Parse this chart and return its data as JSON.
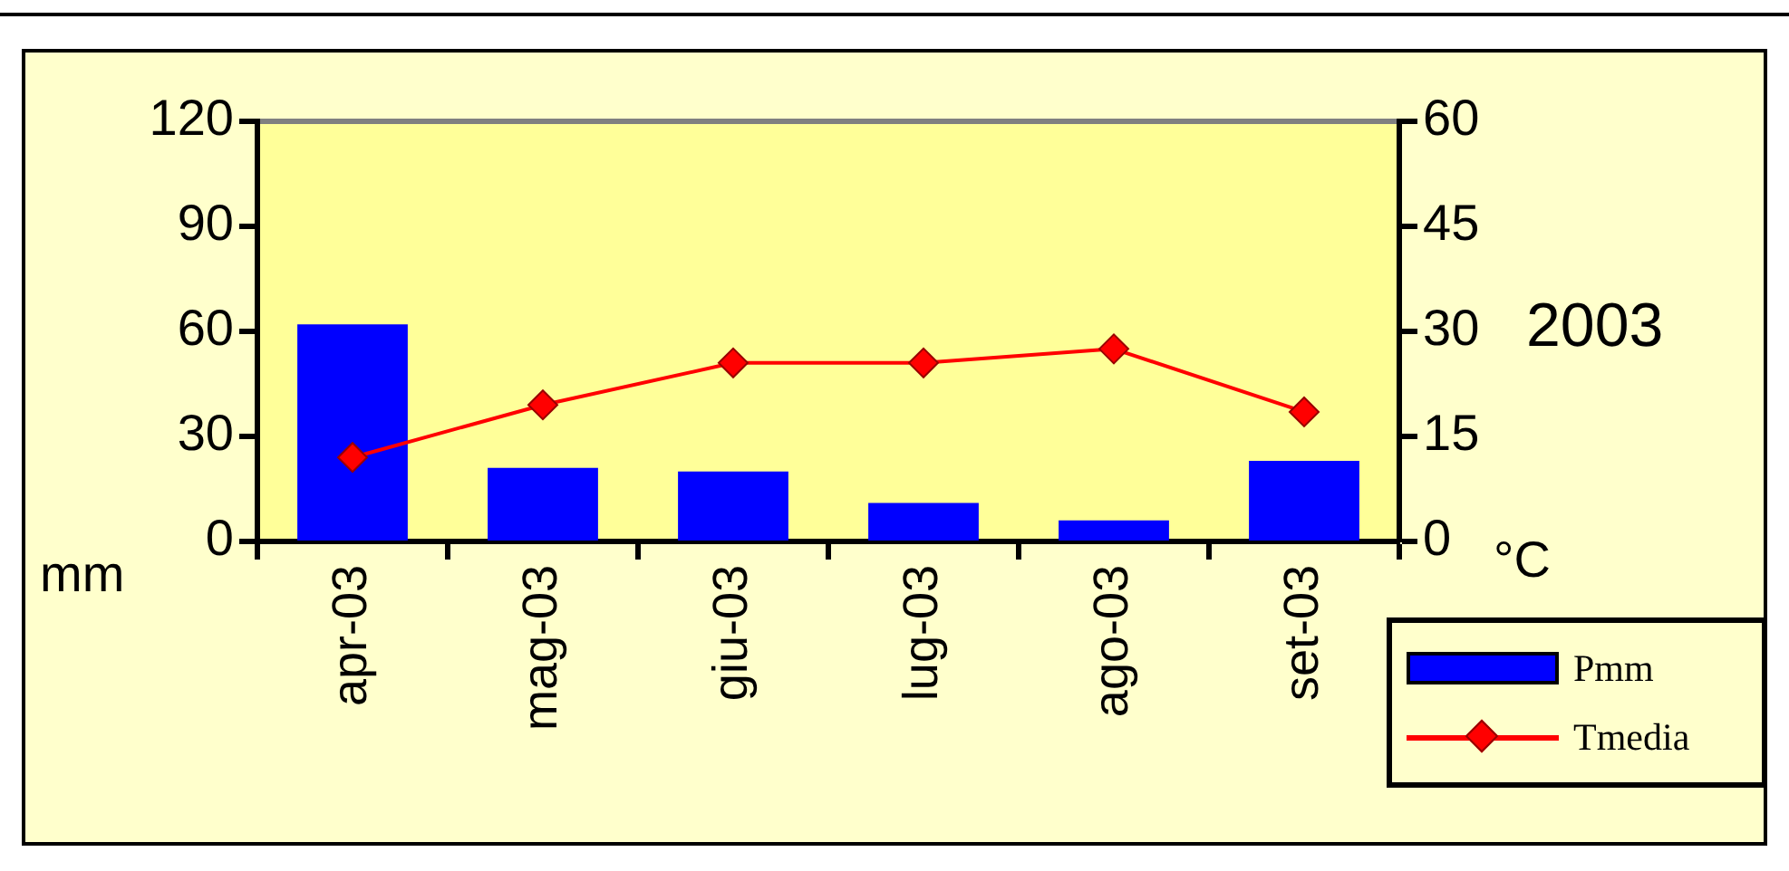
{
  "chart_data": {
    "type": "bar",
    "categories": [
      "apr-03",
      "mag-03",
      "giu-03",
      "lug-03",
      "ago-03",
      "set-03"
    ],
    "series": [
      {
        "name": "Pmm",
        "color": "#0000ff",
        "values": [
          62,
          21,
          20,
          11,
          6,
          23
        ]
      },
      {
        "name": "Tmedia",
        "type": "line",
        "axis": "y2",
        "color": "#ff0000",
        "values": [
          12,
          19.5,
          25.5,
          25.5,
          27.5,
          18.5
        ]
      }
    ],
    "ylim": [
      0,
      120
    ],
    "yticks": [
      0,
      30,
      60,
      90,
      120
    ],
    "y2lim": [
      0,
      60
    ],
    "y2ticks": [
      0,
      15,
      30,
      45,
      60
    ],
    "ylabel": "mm",
    "y2label": "°C",
    "annotations": [
      "2003"
    ],
    "legend": "bottom right",
    "marker": "diamond",
    "grid": false
  }
}
